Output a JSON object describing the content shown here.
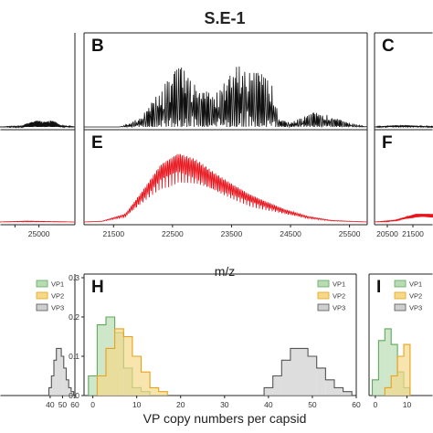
{
  "figure": {
    "title": "S.E-1",
    "mz_label": "m/z",
    "vp_label": "VP copy numbers per capsid"
  },
  "colors": {
    "black_trace": "#111111",
    "red_trace": "#e8141c",
    "vp1": "#b9dcb4",
    "vp1_edge": "#5fa85f",
    "vp2": "#f5d98a",
    "vp2_edge": "#e8a21a",
    "vp3": "#cfcfcf",
    "vp3_edge": "#555555"
  },
  "chart_data": [
    {
      "id": "A",
      "type": "line",
      "panel_label": "",
      "xlim": [
        23300,
        26500
      ],
      "ylim": [
        0,
        1
      ],
      "x_ticks": [],
      "series": [
        {
          "values": [
            [
              23300,
              0.0
            ],
            [
              24300,
              0.01
            ],
            [
              24500,
              0.05
            ],
            [
              24700,
              0.06
            ],
            [
              24900,
              0.08
            ],
            [
              25100,
              0.07
            ],
            [
              25300,
              0.06
            ],
            [
              25500,
              0.08
            ],
            [
              25700,
              0.06
            ],
            [
              25900,
              0.02
            ],
            [
              26500,
              0.0
            ]
          ]
        }
      ]
    },
    {
      "id": "B",
      "type": "line",
      "panel_label": "B",
      "xlim": [
        21000,
        25800
      ],
      "ylim": [
        0,
        1
      ],
      "x_ticks": [],
      "series": [
        {
          "values": [
            [
              21000,
              0.0
            ],
            [
              21600,
              0.0
            ],
            [
              21800,
              0.05
            ],
            [
              22000,
              0.15
            ],
            [
              22200,
              0.35
            ],
            [
              22400,
              0.55
            ],
            [
              22600,
              0.75
            ],
            [
              22800,
              0.65
            ],
            [
              23000,
              0.45
            ],
            [
              23200,
              0.4
            ],
            [
              23400,
              0.55
            ],
            [
              23600,
              0.75
            ],
            [
              23800,
              0.7
            ],
            [
              24000,
              0.65
            ],
            [
              24200,
              0.5
            ],
            [
              24300,
              0.1
            ],
            [
              24500,
              0.05
            ],
            [
              24700,
              0.12
            ],
            [
              24900,
              0.18
            ],
            [
              25100,
              0.15
            ],
            [
              25300,
              0.1
            ],
            [
              25500,
              0.05
            ],
            [
              25800,
              0.0
            ]
          ]
        }
      ]
    },
    {
      "id": "C",
      "type": "line",
      "panel_label": "C",
      "xlim": [
        20000,
        22500
      ],
      "ylim": [
        0,
        1
      ],
      "x_ticks": [],
      "series": [
        {
          "values": [
            [
              20000,
              0.0
            ],
            [
              20300,
              0.01
            ],
            [
              20800,
              0.02
            ],
            [
              21300,
              0.02
            ],
            [
              22500,
              0.0
            ]
          ]
        }
      ]
    },
    {
      "id": "D",
      "type": "line",
      "panel_label": "",
      "xlim": [
        23300,
        26500
      ],
      "ylim": [
        0,
        1
      ],
      "x_ticks": [
        24000,
        25000
      ],
      "x_tick_labels": [
        "",
        "25000"
      ],
      "series": [
        {
          "values": [
            [
              23300,
              0.0
            ],
            [
              24500,
              0.01
            ],
            [
              26500,
              0.0
            ]
          ]
        }
      ]
    },
    {
      "id": "E",
      "type": "line",
      "panel_label": "E",
      "xlim": [
        21000,
        25800
      ],
      "ylim": [
        0,
        1
      ],
      "x_ticks": [
        21500,
        22500,
        23500,
        24500,
        25500
      ],
      "x_tick_labels": [
        "21500",
        "22500",
        "23500",
        "24500",
        "25500"
      ],
      "series": [
        {
          "values": [
            [
              21000,
              0.0
            ],
            [
              21300,
              0.01
            ],
            [
              21700,
              0.1
            ],
            [
              22000,
              0.4
            ],
            [
              22300,
              0.72
            ],
            [
              22600,
              0.86
            ],
            [
              22900,
              0.78
            ],
            [
              23200,
              0.62
            ],
            [
              23500,
              0.48
            ],
            [
              23800,
              0.35
            ],
            [
              24100,
              0.25
            ],
            [
              24400,
              0.16
            ],
            [
              24800,
              0.07
            ],
            [
              25200,
              0.02
            ],
            [
              25800,
              0.0
            ]
          ]
        }
      ]
    },
    {
      "id": "F",
      "type": "line",
      "panel_label": "F",
      "xlim": [
        20000,
        22500
      ],
      "ylim": [
        0,
        1
      ],
      "x_ticks": [
        20500,
        21500
      ],
      "x_tick_labels": [
        "20500",
        "21500"
      ],
      "series": [
        {
          "values": [
            [
              20000,
              0.0
            ],
            [
              20800,
              0.02
            ],
            [
              21200,
              0.06
            ],
            [
              21600,
              0.1
            ]
          ]
        }
      ]
    },
    {
      "id": "G",
      "type": "bar",
      "panel_label": "",
      "xlim": [
        -2,
        60
      ],
      "ylim": [
        0,
        0.3
      ],
      "x_ticks": [
        40,
        50,
        60
      ],
      "x_tick_labels": [
        "40",
        "50",
        "60"
      ],
      "legend": [
        "VP1",
        "VP2",
        "VP3"
      ],
      "series": [
        {
          "name": "VP3",
          "values": [
            [
              40,
              0.02
            ],
            [
              42,
              0.05
            ],
            [
              44,
              0.09
            ],
            [
              46,
              0.12
            ],
            [
              48,
              0.12
            ],
            [
              50,
              0.1
            ],
            [
              52,
              0.07
            ],
            [
              54,
              0.04
            ],
            [
              56,
              0.02
            ],
            [
              58,
              0.01
            ]
          ]
        }
      ]
    },
    {
      "id": "H",
      "type": "bar",
      "panel_label": "H",
      "xlim": [
        -2,
        60
      ],
      "ylim": [
        0,
        0.3
      ],
      "y_ticks": [
        0.0,
        0.1,
        0.2,
        0.3
      ],
      "y_tick_labels": [
        "0.0",
        "0.1",
        "0.2",
        "0.3"
      ],
      "x_ticks": [
        0,
        10,
        20,
        30,
        40,
        50,
        60
      ],
      "x_tick_labels": [
        "0",
        "10",
        "20",
        "30",
        "40",
        "50",
        "60"
      ],
      "legend": [
        "VP1",
        "VP2",
        "VP3"
      ],
      "series": [
        {
          "name": "VP1",
          "values": [
            [
              0,
              0.05
            ],
            [
              2,
              0.18
            ],
            [
              4,
              0.2
            ],
            [
              6,
              0.16
            ],
            [
              8,
              0.07
            ],
            [
              10,
              0.02
            ],
            [
              12,
              0.01
            ]
          ]
        },
        {
          "name": "VP2",
          "values": [
            [
              2,
              0.05
            ],
            [
              4,
              0.12
            ],
            [
              6,
              0.17
            ],
            [
              8,
              0.15
            ],
            [
              10,
              0.1
            ],
            [
              12,
              0.06
            ],
            [
              14,
              0.02
            ],
            [
              16,
              0.01
            ]
          ]
        },
        {
          "name": "VP3",
          "values": [
            [
              40,
              0.02
            ],
            [
              42,
              0.05
            ],
            [
              44,
              0.09
            ],
            [
              46,
              0.12
            ],
            [
              48,
              0.12
            ],
            [
              50,
              0.1
            ],
            [
              52,
              0.07
            ],
            [
              54,
              0.04
            ],
            [
              56,
              0.02
            ],
            [
              58,
              0.01
            ]
          ]
        }
      ]
    },
    {
      "id": "I",
      "type": "bar",
      "panel_label": "I",
      "xlim": [
        -2,
        20
      ],
      "ylim": [
        0,
        0.3
      ],
      "x_ticks": [
        0,
        10
      ],
      "x_tick_labels": [
        "0",
        "10"
      ],
      "legend": [
        "VP1",
        "VP2",
        "VP3"
      ],
      "series": [
        {
          "name": "VP1",
          "values": [
            [
              0,
              0.04
            ],
            [
              2,
              0.14
            ],
            [
              4,
              0.17
            ],
            [
              6,
              0.13
            ],
            [
              8,
              0.06
            ],
            [
              10,
              0.02
            ]
          ]
        },
        {
          "name": "VP2",
          "values": [
            [
              4,
              0.02
            ],
            [
              6,
              0.05
            ],
            [
              8,
              0.1
            ],
            [
              10,
              0.13
            ]
          ]
        }
      ]
    }
  ]
}
